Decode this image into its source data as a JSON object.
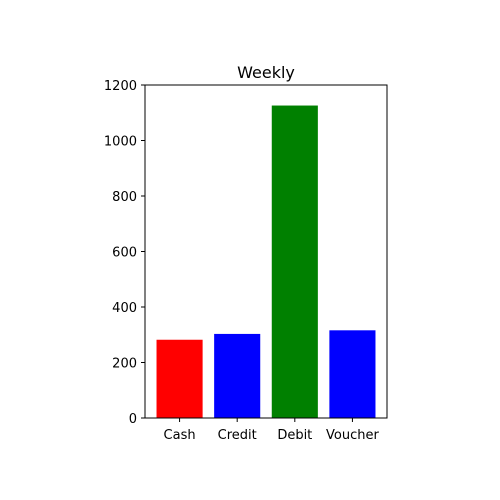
{
  "chart_data": {
    "type": "bar",
    "title": "Weekly",
    "xlabel": "",
    "ylabel": "",
    "categories": [
      "Cash",
      "Credit",
      "Debit",
      "Voucher"
    ],
    "values": [
      282,
      303,
      1126,
      316
    ],
    "colors": [
      "#ff0000",
      "#0000ff",
      "#008000",
      "#0000ff"
    ],
    "ylim": [
      0,
      1200
    ],
    "yticks": [
      0,
      200,
      400,
      600,
      800,
      1000,
      1200
    ],
    "grid": false,
    "legend": "none"
  }
}
